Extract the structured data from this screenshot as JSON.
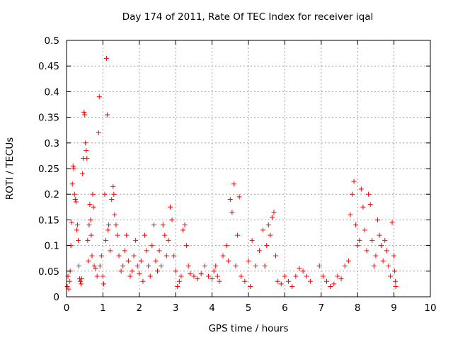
{
  "chart_data": {
    "type": "scatter",
    "title": "Day 174 of 2011, Rate Of TEC Index for receiver iqal",
    "xlabel": "GPS time / hours",
    "ylabel": "ROTI / TECUs",
    "xlim": [
      0,
      10
    ],
    "ylim": [
      0,
      0.5
    ],
    "xticks": [
      "0",
      "1",
      "2",
      "3",
      "4",
      "5",
      "6",
      "7",
      "8",
      "9",
      "10"
    ],
    "yticks": [
      "0",
      "0.05",
      "0.1",
      "0.15",
      "0.2",
      "0.25",
      "0.3",
      "0.35",
      "0.4",
      "0.45",
      "0.5"
    ],
    "grid": true,
    "marker": "+",
    "color": "#ff0000",
    "series": [
      {
        "name": "ROTI",
        "points": [
          [
            0.02,
            0.02
          ],
          [
            0.04,
            0.04
          ],
          [
            0.06,
            0.015
          ],
          [
            0.08,
            0.03
          ],
          [
            0.1,
            0.05
          ],
          [
            0.12,
            0.1
          ],
          [
            0.14,
            0.145
          ],
          [
            0.16,
            0.22
          ],
          [
            0.18,
            0.255
          ],
          [
            0.2,
            0.25
          ],
          [
            0.22,
            0.2
          ],
          [
            0.24,
            0.19
          ],
          [
            0.26,
            0.185
          ],
          [
            0.28,
            0.13
          ],
          [
            0.3,
            0.14
          ],
          [
            0.32,
            0.11
          ],
          [
            0.34,
            0.06
          ],
          [
            0.36,
            0.035
          ],
          [
            0.38,
            0.03
          ],
          [
            0.4,
            0.025
          ],
          [
            0.42,
            0.035
          ],
          [
            0.44,
            0.24
          ],
          [
            0.46,
            0.27
          ],
          [
            0.48,
            0.36
          ],
          [
            0.5,
            0.355
          ],
          [
            0.52,
            0.3
          ],
          [
            0.54,
            0.285
          ],
          [
            0.56,
            0.27
          ],
          [
            0.58,
            0.11
          ],
          [
            0.6,
            0.07
          ],
          [
            0.62,
            0.14
          ],
          [
            0.64,
            0.18
          ],
          [
            0.66,
            0.15
          ],
          [
            0.68,
            0.12
          ],
          [
            0.7,
            0.08
          ],
          [
            0.72,
            0.2
          ],
          [
            0.74,
            0.175
          ],
          [
            0.76,
            0.06
          ],
          [
            0.8,
            0.055
          ],
          [
            0.84,
            0.04
          ],
          [
            0.88,
            0.32
          ],
          [
            0.9,
            0.39
          ],
          [
            0.92,
            0.06
          ],
          [
            0.96,
            0.08
          ],
          [
            1.0,
            0.04
          ],
          [
            1.02,
            0.025
          ],
          [
            1.05,
            0.2
          ],
          [
            1.08,
            0.11
          ],
          [
            1.1,
            0.465
          ],
          [
            1.12,
            0.355
          ],
          [
            1.14,
            0.13
          ],
          [
            1.16,
            0.14
          ],
          [
            1.2,
            0.09
          ],
          [
            1.24,
            0.19
          ],
          [
            1.28,
            0.215
          ],
          [
            1.3,
            0.2
          ],
          [
            1.32,
            0.16
          ],
          [
            1.36,
            0.14
          ],
          [
            1.4,
            0.12
          ],
          [
            1.44,
            0.08
          ],
          [
            1.5,
            0.05
          ],
          [
            1.55,
            0.06
          ],
          [
            1.6,
            0.09
          ],
          [
            1.65,
            0.12
          ],
          [
            1.7,
            0.07
          ],
          [
            1.75,
            0.04
          ],
          [
            1.8,
            0.05
          ],
          [
            1.85,
            0.08
          ],
          [
            1.9,
            0.11
          ],
          [
            1.95,
            0.06
          ],
          [
            2.0,
            0.045
          ],
          [
            2.05,
            0.07
          ],
          [
            2.1,
            0.03
          ],
          [
            2.15,
            0.12
          ],
          [
            2.2,
            0.09
          ],
          [
            2.25,
            0.06
          ],
          [
            2.3,
            0.04
          ],
          [
            2.35,
            0.1
          ],
          [
            2.4,
            0.14
          ],
          [
            2.45,
            0.07
          ],
          [
            2.5,
            0.05
          ],
          [
            2.55,
            0.09
          ],
          [
            2.6,
            0.06
          ],
          [
            2.65,
            0.14
          ],
          [
            2.7,
            0.12
          ],
          [
            2.75,
            0.08
          ],
          [
            2.8,
            0.11
          ],
          [
            2.85,
            0.175
          ],
          [
            2.9,
            0.15
          ],
          [
            2.95,
            0.08
          ],
          [
            3.0,
            0.05
          ],
          [
            3.05,
            0.02
          ],
          [
            3.1,
            0.03
          ],
          [
            3.15,
            0.04
          ],
          [
            3.2,
            0.13
          ],
          [
            3.25,
            0.14
          ],
          [
            3.3,
            0.1
          ],
          [
            3.35,
            0.06
          ],
          [
            3.4,
            0.045
          ],
          [
            3.5,
            0.04
          ],
          [
            3.6,
            0.035
          ],
          [
            3.7,
            0.045
          ],
          [
            3.8,
            0.06
          ],
          [
            3.9,
            0.04
          ],
          [
            4.0,
            0.035
          ],
          [
            4.05,
            0.05
          ],
          [
            4.1,
            0.06
          ],
          [
            4.15,
            0.04
          ],
          [
            4.2,
            0.03
          ],
          [
            4.3,
            0.08
          ],
          [
            4.4,
            0.1
          ],
          [
            4.45,
            0.07
          ],
          [
            4.5,
            0.19
          ],
          [
            4.55,
            0.165
          ],
          [
            4.6,
            0.22
          ],
          [
            4.65,
            0.06
          ],
          [
            4.7,
            0.12
          ],
          [
            4.75,
            0.195
          ],
          [
            4.8,
            0.04
          ],
          [
            4.9,
            0.03
          ],
          [
            5.0,
            0.07
          ],
          [
            5.05,
            0.02
          ],
          [
            5.1,
            0.11
          ],
          [
            5.2,
            0.06
          ],
          [
            5.3,
            0.09
          ],
          [
            5.4,
            0.13
          ],
          [
            5.45,
            0.06
          ],
          [
            5.5,
            0.1
          ],
          [
            5.55,
            0.14
          ],
          [
            5.6,
            0.12
          ],
          [
            5.65,
            0.155
          ],
          [
            5.7,
            0.165
          ],
          [
            5.75,
            0.08
          ],
          [
            5.8,
            0.03
          ],
          [
            5.9,
            0.025
          ],
          [
            6.0,
            0.04
          ],
          [
            6.1,
            0.03
          ],
          [
            6.2,
            0.02
          ],
          [
            6.3,
            0.04
          ],
          [
            6.4,
            0.055
          ],
          [
            6.5,
            0.05
          ],
          [
            6.6,
            0.04
          ],
          [
            6.7,
            0.03
          ],
          [
            6.95,
            0.06
          ],
          [
            7.05,
            0.04
          ],
          [
            7.15,
            0.03
          ],
          [
            7.25,
            0.02
          ],
          [
            7.35,
            0.025
          ],
          [
            7.45,
            0.04
          ],
          [
            7.55,
            0.035
          ],
          [
            7.65,
            0.06
          ],
          [
            7.75,
            0.07
          ],
          [
            7.8,
            0.16
          ],
          [
            7.85,
            0.2
          ],
          [
            7.9,
            0.225
          ],
          [
            7.95,
            0.14
          ],
          [
            8.0,
            0.1
          ],
          [
            8.05,
            0.11
          ],
          [
            8.1,
            0.21
          ],
          [
            8.15,
            0.175
          ],
          [
            8.2,
            0.13
          ],
          [
            8.25,
            0.09
          ],
          [
            8.3,
            0.2
          ],
          [
            8.35,
            0.18
          ],
          [
            8.4,
            0.11
          ],
          [
            8.45,
            0.06
          ],
          [
            8.5,
            0.08
          ],
          [
            8.55,
            0.15
          ],
          [
            8.6,
            0.12
          ],
          [
            8.65,
            0.1
          ],
          [
            8.7,
            0.07
          ],
          [
            8.75,
            0.11
          ],
          [
            8.8,
            0.09
          ],
          [
            8.85,
            0.06
          ],
          [
            8.9,
            0.04
          ],
          [
            8.95,
            0.145
          ],
          [
            9.0,
            0.08
          ],
          [
            9.02,
            0.05
          ],
          [
            9.04,
            0.03
          ],
          [
            9.05,
            0.02
          ]
        ]
      }
    ]
  }
}
